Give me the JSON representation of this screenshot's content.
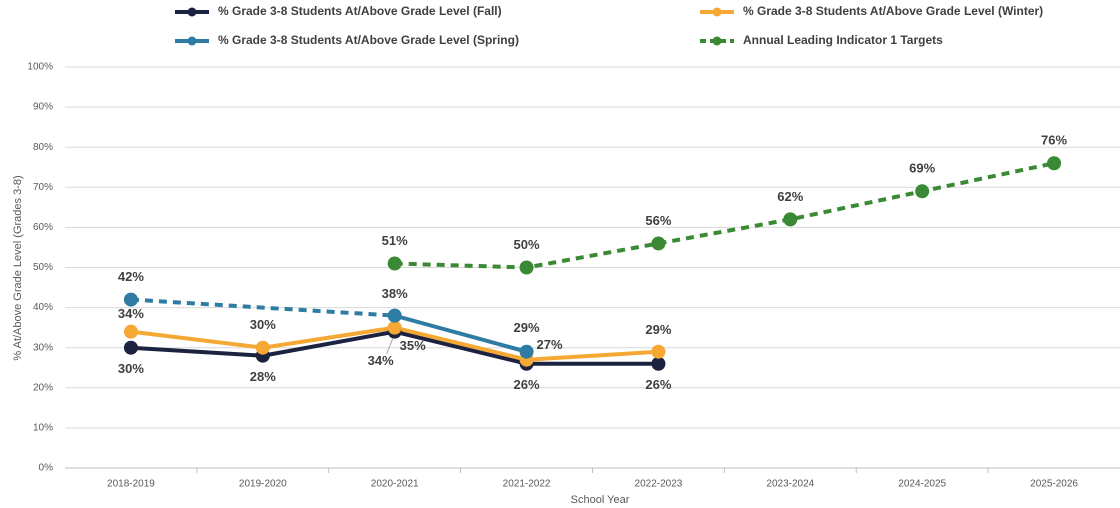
{
  "chart_data": {
    "type": "line",
    "x_label": "School Year",
    "y_label": "% At/Above Grade Level (Grades 3-8)",
    "categories": [
      "2018-2019",
      "2019-2020",
      "2020-2021",
      "2021-2022",
      "2022-2023",
      "2023-2024",
      "2024-2025",
      "2025-2026"
    ],
    "series": [
      {
        "name": "% Grade 3-8 Students At/Above Grade Level (Fall)",
        "color": "#1b2340",
        "dashed": false,
        "values": [
          30,
          28,
          34,
          26,
          26,
          null,
          null,
          null
        ],
        "value_labels": [
          "30%",
          "28%",
          "34%",
          "26%",
          "26%",
          null,
          null,
          null
        ]
      },
      {
        "name": "% Grade 3-8 Students At/Above Grade Level (Winter)",
        "color": "#f5a833",
        "dashed": false,
        "values": [
          34,
          30,
          35,
          27,
          29,
          null,
          null,
          null
        ],
        "value_labels": [
          "34%",
          "30%",
          "35%",
          "27%",
          "29%",
          null,
          null,
          null
        ]
      },
      {
        "name": "% Grade 3-8 Students At/Above Grade Level (Spring)",
        "color": "#2e7ca3",
        "dashed": false,
        "connect_gaps": "dashed",
        "values": [
          42,
          null,
          38,
          29,
          null,
          null,
          null,
          null
        ],
        "value_labels": [
          "42%",
          null,
          "38%",
          "29%",
          null,
          null,
          null,
          null
        ]
      },
      {
        "name": "Annual Leading Indicator 1 Targets",
        "color": "#3a8a35",
        "dashed": true,
        "values": [
          null,
          null,
          51,
          50,
          56,
          62,
          69,
          76
        ],
        "value_labels": [
          null,
          null,
          "51%",
          "50%",
          "56%",
          "62%",
          "69%",
          "76%"
        ]
      }
    ],
    "ylim": [
      0,
      100
    ],
    "yticks": [
      {
        "value": 0,
        "label": "0%"
      },
      {
        "value": 10,
        "label": "10%"
      },
      {
        "value": 20,
        "label": "20%"
      },
      {
        "value": 30,
        "label": "30%"
      },
      {
        "value": 40,
        "label": "40%"
      },
      {
        "value": 50,
        "label": "50%"
      },
      {
        "value": 60,
        "label": "60%"
      },
      {
        "value": 70,
        "label": "70%"
      },
      {
        "value": 80,
        "label": "80%"
      },
      {
        "value": 90,
        "label": "90%"
      },
      {
        "value": 100,
        "label": "100%"
      }
    ],
    "grid": true,
    "legend": "top"
  }
}
